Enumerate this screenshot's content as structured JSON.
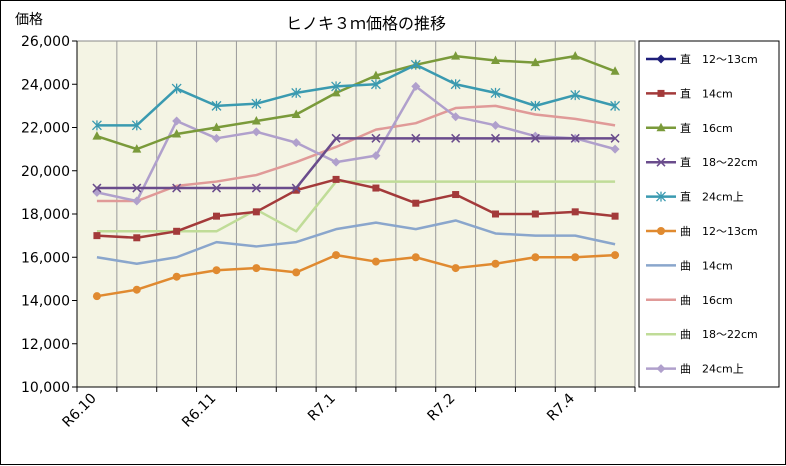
{
  "chart_data": {
    "type": "line",
    "title": "ヒノキ３ｍ価格の推移",
    "ylabel": "価格",
    "xlabel": "",
    "ylim": [
      10000,
      26000
    ],
    "yticks": [
      10000,
      12000,
      14000,
      16000,
      18000,
      20000,
      22000,
      24000,
      26000
    ],
    "ytick_labels": [
      "10,000",
      "12,000",
      "14,000",
      "16,000",
      "18,000",
      "20,000",
      "22,000",
      "24,000",
      "26,000"
    ],
    "x_labels": [
      "R6.10",
      "R6.11",
      "R7.1",
      "R7.2",
      "R7.4"
    ],
    "x_label_positions": [
      0,
      3,
      6,
      9,
      12
    ],
    "grid": "vertical",
    "legend_position": "right",
    "plot_background": "#f4f4e4",
    "series": [
      {
        "name": "直　12～13cm",
        "color": "#1f1f7a",
        "marker": "diamond",
        "values": [
          null,
          null,
          null,
          null,
          null,
          null,
          null,
          null,
          null,
          null,
          null,
          null,
          null,
          null
        ]
      },
      {
        "name": "直　14cm",
        "color": "#a33a3a",
        "marker": "square",
        "values": [
          17000,
          16900,
          17200,
          17900,
          18100,
          19100,
          19600,
          19200,
          18500,
          18900,
          18000,
          18000,
          18100,
          17900
        ]
      },
      {
        "name": "直　16cm",
        "color": "#7a9a3a",
        "marker": "triangle",
        "values": [
          21600,
          21000,
          21700,
          22000,
          22300,
          22600,
          23600,
          24400,
          24900,
          25300,
          25100,
          25000,
          25300,
          24600
        ]
      },
      {
        "name": "直　18～22cm",
        "color": "#6a4c8c",
        "marker": "x",
        "values": [
          19200,
          19200,
          19200,
          19200,
          19200,
          19200,
          21500,
          21500,
          21500,
          21500,
          21500,
          21500,
          21500,
          21500
        ]
      },
      {
        "name": "直　24cm上",
        "color": "#3a9ab0",
        "marker": "star",
        "values": [
          22100,
          22100,
          23800,
          23000,
          23100,
          23600,
          23900,
          24000,
          24900,
          24000,
          23600,
          23000,
          23500,
          23000
        ]
      },
      {
        "name": "曲　12～13cm",
        "color": "#e08a30",
        "marker": "circle",
        "values": [
          14200,
          14500,
          15100,
          15400,
          15500,
          15300,
          16100,
          15800,
          16000,
          15500,
          15700,
          16000,
          16000,
          16100
        ]
      },
      {
        "name": "曲　14cm",
        "color": "#8aa6cc",
        "marker": "line",
        "values": [
          16000,
          15700,
          16000,
          16700,
          16500,
          16700,
          17300,
          17600,
          17300,
          17700,
          17100,
          17000,
          17000,
          16600
        ]
      },
      {
        "name": "曲　16cm",
        "color": "#e09a98",
        "marker": "line",
        "values": [
          18600,
          18600,
          19300,
          19500,
          19800,
          20400,
          21100,
          21900,
          22200,
          22900,
          23000,
          22600,
          22400,
          22100
        ]
      },
      {
        "name": "曲　18～22cm",
        "color": "#c0dc98",
        "marker": "line",
        "values": [
          17200,
          17200,
          17200,
          17200,
          18200,
          17200,
          19500,
          19500,
          19500,
          19500,
          19500,
          19500,
          19500,
          19500
        ]
      },
      {
        "name": "曲　24cm上",
        "color": "#b0a0cc",
        "marker": "diamond",
        "values": [
          19000,
          18600,
          22300,
          21500,
          21800,
          21300,
          20400,
          20700,
          23900,
          22500,
          22100,
          21600,
          21500,
          21000
        ]
      }
    ]
  }
}
